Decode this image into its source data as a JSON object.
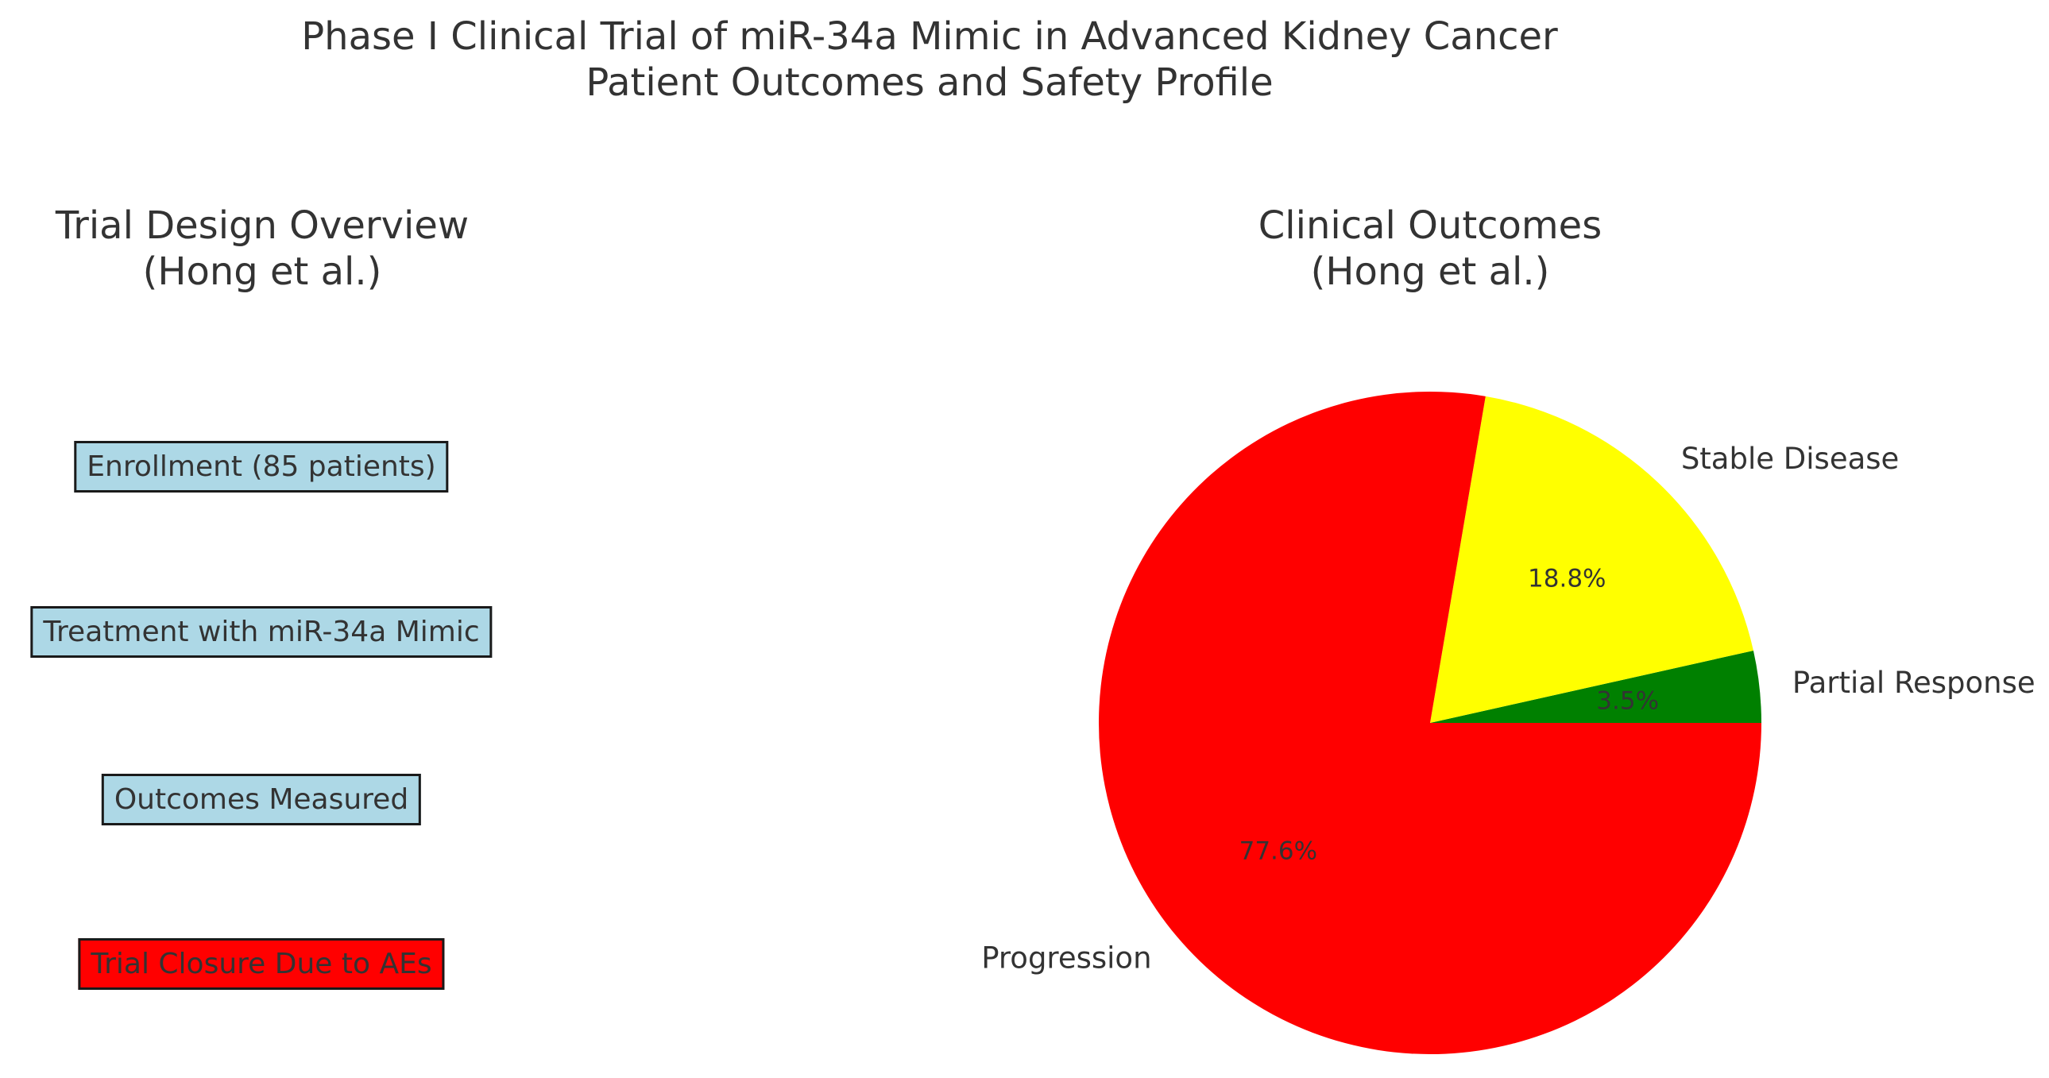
{
  "figure": {
    "title_line1": "Phase I Clinical Trial of miR-34a Mimic in Advanced Kidney Cancer",
    "title_line2": "Patient Outcomes and Safety Profile",
    "background_color": "#ffffff",
    "text_color": "#333333"
  },
  "flowchart": {
    "title_line1": "Trial Design Overview",
    "title_line2": "(Hong et al.)",
    "boxes": [
      {
        "label": "Enrollment (85 patients)",
        "fill": "#ADD8E6"
      },
      {
        "label": "Treatment with miR-34a Mimic",
        "fill": "#ADD8E6"
      },
      {
        "label": "Outcomes Measured",
        "fill": "#ADD8E6"
      },
      {
        "label": "Trial Closure Due to AEs",
        "fill": "#FF0000"
      }
    ],
    "border_color": "#1a1a1a"
  },
  "pie_section": {
    "title_line1": "Clinical Outcomes",
    "title_line2": "(Hong et al.)"
  },
  "chart_data": {
    "type": "pie",
    "title": "Clinical Outcomes (Hong et al.)",
    "labels": [
      "Partial Response",
      "Stable Disease",
      "Progression"
    ],
    "values": [
      3.5,
      18.8,
      77.6
    ],
    "pct_labels": [
      "3.5%",
      "18.8%",
      "77.6%"
    ],
    "colors": [
      "#008000",
      "#FFFF00",
      "#FF0000"
    ],
    "start_angle_deg": 0,
    "direction": "counterclockwise",
    "label_distance": 1.1,
    "pct_distance": 0.6,
    "legend": "none"
  }
}
